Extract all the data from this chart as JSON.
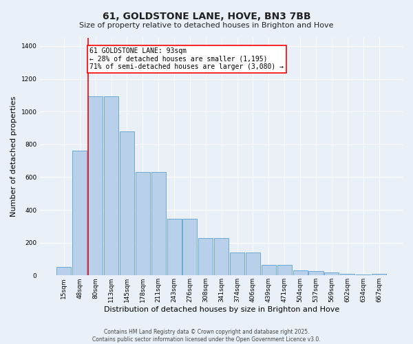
{
  "title": "61, GOLDSTONE LANE, HOVE, BN3 7BB",
  "subtitle": "Size of property relative to detached houses in Brighton and Hove",
  "xlabel": "Distribution of detached houses by size in Brighton and Hove",
  "ylabel": "Number of detached properties",
  "footer_line1": "Contains HM Land Registry data © Crown copyright and database right 2025.",
  "footer_line2": "Contains public sector information licensed under the Open Government Licence v3.0.",
  "annotation_line1": "61 GOLDSTONE LANE: 93sqm",
  "annotation_line2": "← 28% of detached houses are smaller (1,195)",
  "annotation_line3": "71% of semi-detached houses are larger (3,080) →",
  "bar_color": "#b8d0ea",
  "bar_edge_color": "#6aaad4",
  "categories": [
    "15sqm",
    "48sqm",
    "80sqm",
    "113sqm",
    "145sqm",
    "178sqm",
    "211sqm",
    "243sqm",
    "276sqm",
    "308sqm",
    "341sqm",
    "374sqm",
    "406sqm",
    "439sqm",
    "471sqm",
    "504sqm",
    "537sqm",
    "569sqm",
    "602sqm",
    "634sqm",
    "667sqm"
  ],
  "values": [
    50,
    760,
    1095,
    1095,
    880,
    630,
    630,
    345,
    345,
    230,
    230,
    140,
    140,
    65,
    65,
    30,
    25,
    18,
    10,
    5,
    8
  ],
  "ylim": [
    0,
    1450
  ],
  "yticks": [
    0,
    200,
    400,
    600,
    800,
    1000,
    1200,
    1400
  ],
  "red_line_index": 2.0,
  "background_color": "#eaf0f8",
  "grid_color": "#ffffff",
  "title_fontsize": 10,
  "subtitle_fontsize": 8,
  "ylabel_fontsize": 8,
  "xlabel_fontsize": 8,
  "tick_fontsize": 6.5,
  "footer_fontsize": 5.5,
  "annotation_fontsize": 7
}
